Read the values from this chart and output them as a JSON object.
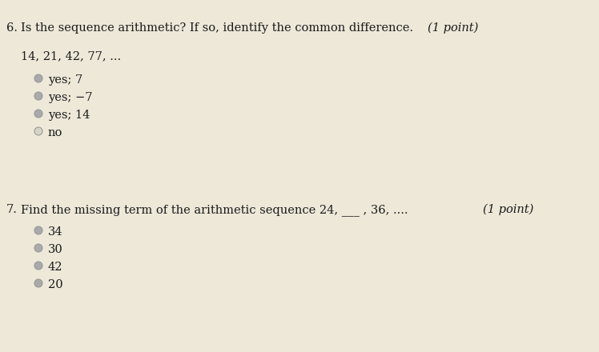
{
  "bg_color": "#ede8d8",
  "text_color": "#1a1a1a",
  "q6_num": "6.",
  "q6_question": "Is the sequence arithmetic? If so, identify the common difference.",
  "q6_points": "(1 point)",
  "q6_sequence": "14, 21, 42, 77, ...",
  "q6_options": [
    "yes; 7",
    "yes; −7",
    "yes; 14",
    "no"
  ],
  "q7_num": "7.",
  "q7_question": "Find the missing term of the arithmetic sequence 24, ___ , 36, .... ",
  "q7_points": "(1 point)",
  "q7_options": [
    "34",
    "30",
    "42",
    "20"
  ],
  "font_size_q": 10.5,
  "font_size_opt": 10.5,
  "circle_edge_color": "#999999",
  "circle_face_color_filled": "#aaaaaa",
  "circle_face_color_empty": "#d8d4c4"
}
